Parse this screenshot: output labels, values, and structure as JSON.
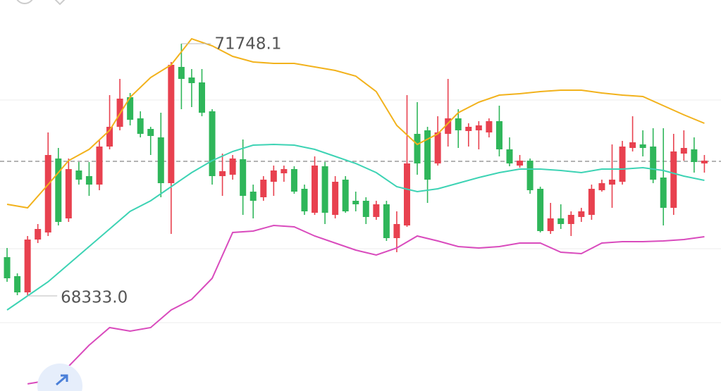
{
  "chart_data": {
    "type": "candlestick",
    "up_color": "#e8414f",
    "down_color": "#2fb65a",
    "open": [
      68857.6,
      68600.1,
      68380.6,
      69096.1,
      69191.5,
      70193.1,
      69382.3,
      70031.0,
      69954.6,
      69840.2,
      70355.3,
      70622.4,
      71023.1,
      70736.9,
      70593.8,
      70479.3,
      69859.3,
      71433.3,
      71290.2,
      71223.4,
      70832.3,
      69954.6,
      69973.7,
      70183.6,
      69744.8,
      69668.5,
      69878.3,
      69992.8,
      70050.0,
      69782.9,
      69458.6,
      70088.2,
      69430.0,
      69907.0,
      69620.8,
      69620.8,
      69401.4,
      69573.1,
      69115.2,
      69286.9,
      70527.0,
      70574.7,
      70126.4,
      70527.0,
      70736.9,
      70565.2,
      70574.7,
      70546.1,
      70698.7,
      70317.1,
      70097.7,
      70164.5,
      69782.9,
      69210.6,
      69382.3,
      69306.0,
      69401.4,
      69430.0,
      69763.9,
      69840.2,
      69878.3,
      70336.2,
      70383.9,
      70355.3,
      69935.6,
      69525.4,
      70259.9,
      70317.1,
      70126.4
    ],
    "close": [
      68571.4,
      68380.6,
      69096.1,
      69239.2,
      70240.8,
      69334.6,
      70050.0,
      69907.0,
      69840.2,
      70355.3,
      70622.4,
      71004.0,
      70717.8,
      70527.0,
      70498.4,
      69859.3,
      71461.9,
      71271.1,
      71213.9,
      70813.2,
      69954.6,
      70021.4,
      70193.1,
      69687.5,
      69620.8,
      69907.0,
      70031.0,
      70050.0,
      69744.8,
      69477.7,
      70097.7,
      69458.6,
      69878.3,
      69477.7,
      69573.1,
      69401.4,
      69573.1,
      69115.2,
      69306.0,
      70126.4,
      70126.4,
      69907.0,
      70546.1,
      70736.9,
      70574.7,
      70622.4,
      70641.5,
      70698.7,
      70317.1,
      70126.4,
      70164.5,
      69763.9,
      69210.6,
      69382.3,
      69306.0,
      69430.0,
      69477.7,
      69782.9,
      69859.3,
      69907.0,
      70355.3,
      70412.5,
      70336.2,
      69907.0,
      69525.4,
      70288.5,
      70336.2,
      70145.4,
      70164.5
    ],
    "high": [
      68981.6,
      68638.2,
      69143.8,
      69306.0,
      70546.1,
      70336.2,
      70193.1,
      70145.4,
      70145.4,
      70450.7,
      71051.7,
      71271.1,
      71080.3,
      70832.3,
      70622.4,
      70813.2,
      71500.0,
      71748.1,
      71404.6,
      71404.6,
      70860.9,
      70259.9,
      70240.8,
      70450.7,
      69840.2,
      69954.6,
      70097.7,
      70097.7,
      70088.2,
      69840.2,
      70221.8,
      70145.4,
      69954.6,
      69954.6,
      69744.8,
      69668.5,
      69620.8,
      69620.8,
      69477.7,
      71051.7,
      70956.3,
      70622.4,
      70765.5,
      71271.1,
      70860.9,
      70670.1,
      70698.7,
      70736.9,
      70908.6,
      70479.3,
      70240.8,
      70193.1,
      69811.6,
      69592.2,
      69573.1,
      69477.7,
      69525.4,
      69840.2,
      69907.0,
      70383.9,
      70431.6,
      70765.5,
      70574.7,
      70603.3,
      70603.3,
      70527.0,
      70574.7,
      70479.3,
      70240.8
    ],
    "low": [
      68523.7,
      68342.5,
      68333.0,
      69048.4,
      69143.8,
      69286.9,
      69334.6,
      69840.2,
      69687.5,
      69763.9,
      70317.1,
      70574.7,
      70641.5,
      70479.3,
      70240.8,
      69668.5,
      69172.4,
      70860.9,
      70889.5,
      70765.5,
      69840.2,
      69687.5,
      69907.0,
      69430.0,
      69382.3,
      69620.8,
      69687.5,
      69878.3,
      69716.2,
      69430.0,
      69430.0,
      69306.0,
      69382.3,
      69458.6,
      69477.7,
      69306.0,
      69363.2,
      69077.0,
      68924.4,
      69267.8,
      69973.7,
      69592.2,
      70097.7,
      70355.3,
      70336.2,
      70355.3,
      70317.1,
      70479.3,
      70221.8,
      70088.2,
      70069.1,
      69716.2,
      69191.5,
      69172.4,
      69239.2,
      69143.8,
      69334.6,
      69363.2,
      69744.8,
      69525.4,
      69840.2,
      70288.5,
      70221.8,
      69859.3,
      69286.9,
      69430.0,
      70164.5,
      70002.3,
      70002.3
    ],
    "bands": [
      {
        "color": "#f2b21c",
        "x": [
          0,
          2,
          4,
          6,
          8,
          10,
          12,
          14,
          16,
          18,
          20,
          22,
          24,
          26,
          28,
          30,
          32,
          34,
          36,
          38,
          40,
          42,
          44,
          46,
          48,
          50,
          52,
          54,
          56,
          58,
          60,
          62,
          64,
          66,
          68
        ],
        "values": [
          69573.1,
          69525.4,
          69840.2,
          70164.5,
          70317.1,
          70574.7,
          71023.1,
          71290.2,
          71461.9,
          71814.8,
          71719.4,
          71576.3,
          71500.0,
          71481.0,
          71481.0,
          71433.3,
          71385.6,
          71309.2,
          71099.4,
          70641.5,
          70383.9,
          70527.0,
          70813.2,
          70956.3,
          71051.7,
          71070.8,
          71099.4,
          71118.5,
          71118.5,
          71080.3,
          71051.7,
          71032.6,
          70908.6,
          70784.6,
          70670.1
        ]
      },
      {
        "color": "#3dd3b4",
        "x": [
          0,
          2,
          4,
          6,
          8,
          10,
          12,
          14,
          16,
          18,
          20,
          22,
          24,
          26,
          28,
          30,
          32,
          34,
          36,
          38,
          40,
          42,
          44,
          46,
          48,
          50,
          52,
          54,
          56,
          58,
          60,
          62,
          64,
          66,
          68
        ],
        "values": [
          68142.2,
          68333.0,
          68523.7,
          68762.2,
          69000.7,
          69239.2,
          69477.7,
          69620.8,
          69811.6,
          70002.3,
          70164.5,
          70288.5,
          70374.4,
          70383.9,
          70374.4,
          70317.1,
          70221.8,
          70126.4,
          70002.3,
          69811.6,
          69744.8,
          69782.9,
          69859.3,
          69935.6,
          70002.3,
          70050.0,
          70050.0,
          70031.0,
          70002.3,
          70050.0,
          70050.0,
          70069.1,
          70031.0,
          69954.6,
          69897.4
        ]
      },
      {
        "color": "#d94bbd",
        "x": [
          0,
          2,
          4,
          6,
          8,
          10,
          12,
          14,
          16,
          18,
          20,
          22,
          24,
          26,
          28,
          30,
          32,
          34,
          36,
          38,
          40,
          42,
          44,
          46,
          48,
          50,
          52,
          54,
          56,
          58,
          60,
          62,
          64,
          66,
          68
        ],
        "values": [
          null,
          67141.5,
          67188.2,
          67379.0,
          67665.2,
          67903.7,
          67856.0,
          67903.7,
          68142.2,
          68285.3,
          68571.4,
          69191.5,
          69210.6,
          69286.9,
          69267.8,
          69143.8,
          69048.4,
          68953.0,
          68886.2,
          68981.6,
          69143.8,
          69077.0,
          69000.7,
          68981.6,
          69000.7,
          69048.4,
          69048.4,
          68924.4,
          68905.3,
          69048.4,
          69067.5,
          69067.5,
          69077.0,
          69096.1,
          69134.3
        ]
      }
    ],
    "annotations": [
      {
        "value": 71748.1,
        "label": "71748.1"
      },
      {
        "value": 68333.0,
        "label": "68333.0"
      }
    ],
    "last_price": 70155.0,
    "grid_levels": [
      70984.9,
      68972.1,
      67970.5
    ],
    "xlim": [
      -0.69,
      69.62
    ],
    "ylim": [
      67045.1,
      72339.5
    ]
  }
}
